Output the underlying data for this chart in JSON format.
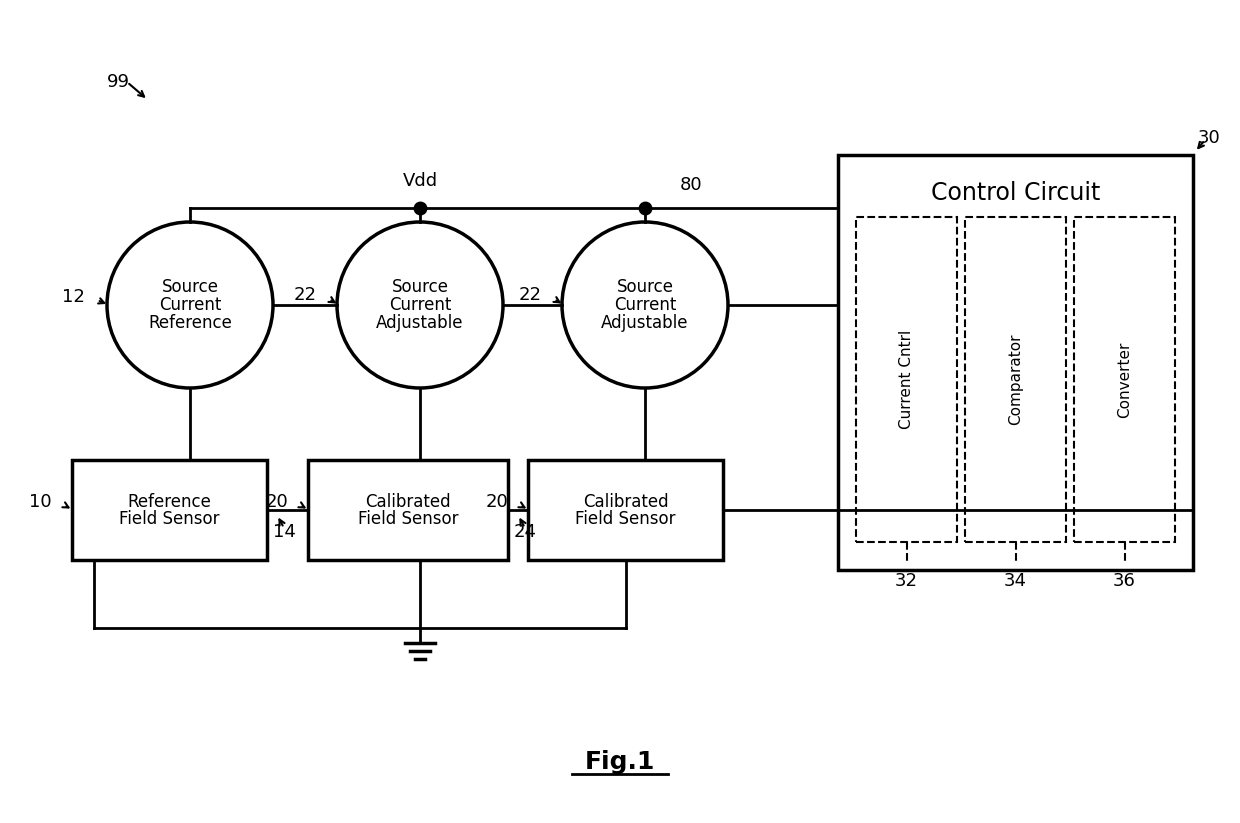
{
  "background_color": "#ffffff",
  "fig_title": "Fig.1",
  "label_99": "99",
  "label_30": "30",
  "label_12": "12",
  "label_22a": "22",
  "label_22b": "22",
  "label_80": "80",
  "label_10": "10",
  "label_20a": "20",
  "label_20b": "20",
  "label_14": "14",
  "label_24": "24",
  "label_32": "32",
  "label_34": "34",
  "label_36": "36",
  "label_vdd": "Vdd",
  "circle1_text": [
    "Reference",
    "Current",
    "Source"
  ],
  "circle2_text": [
    "Adjustable",
    "Current",
    "Source"
  ],
  "circle3_text": [
    "Adjustable",
    "Current",
    "Source"
  ],
  "box_control_title": "Control Circuit",
  "box_sub1": "Current Cntrl",
  "box_sub2": "Comparator",
  "box_sub3": "Converter",
  "box1_text": [
    "Reference",
    "Field Sensor"
  ],
  "box2_text": [
    "Calibrated",
    "Field Sensor"
  ],
  "box3_text": [
    "Calibrated",
    "Field Sensor"
  ],
  "line_color": "#000000",
  "text_color": "#000000",
  "lw": 2.0,
  "dashed_lw": 1.5
}
